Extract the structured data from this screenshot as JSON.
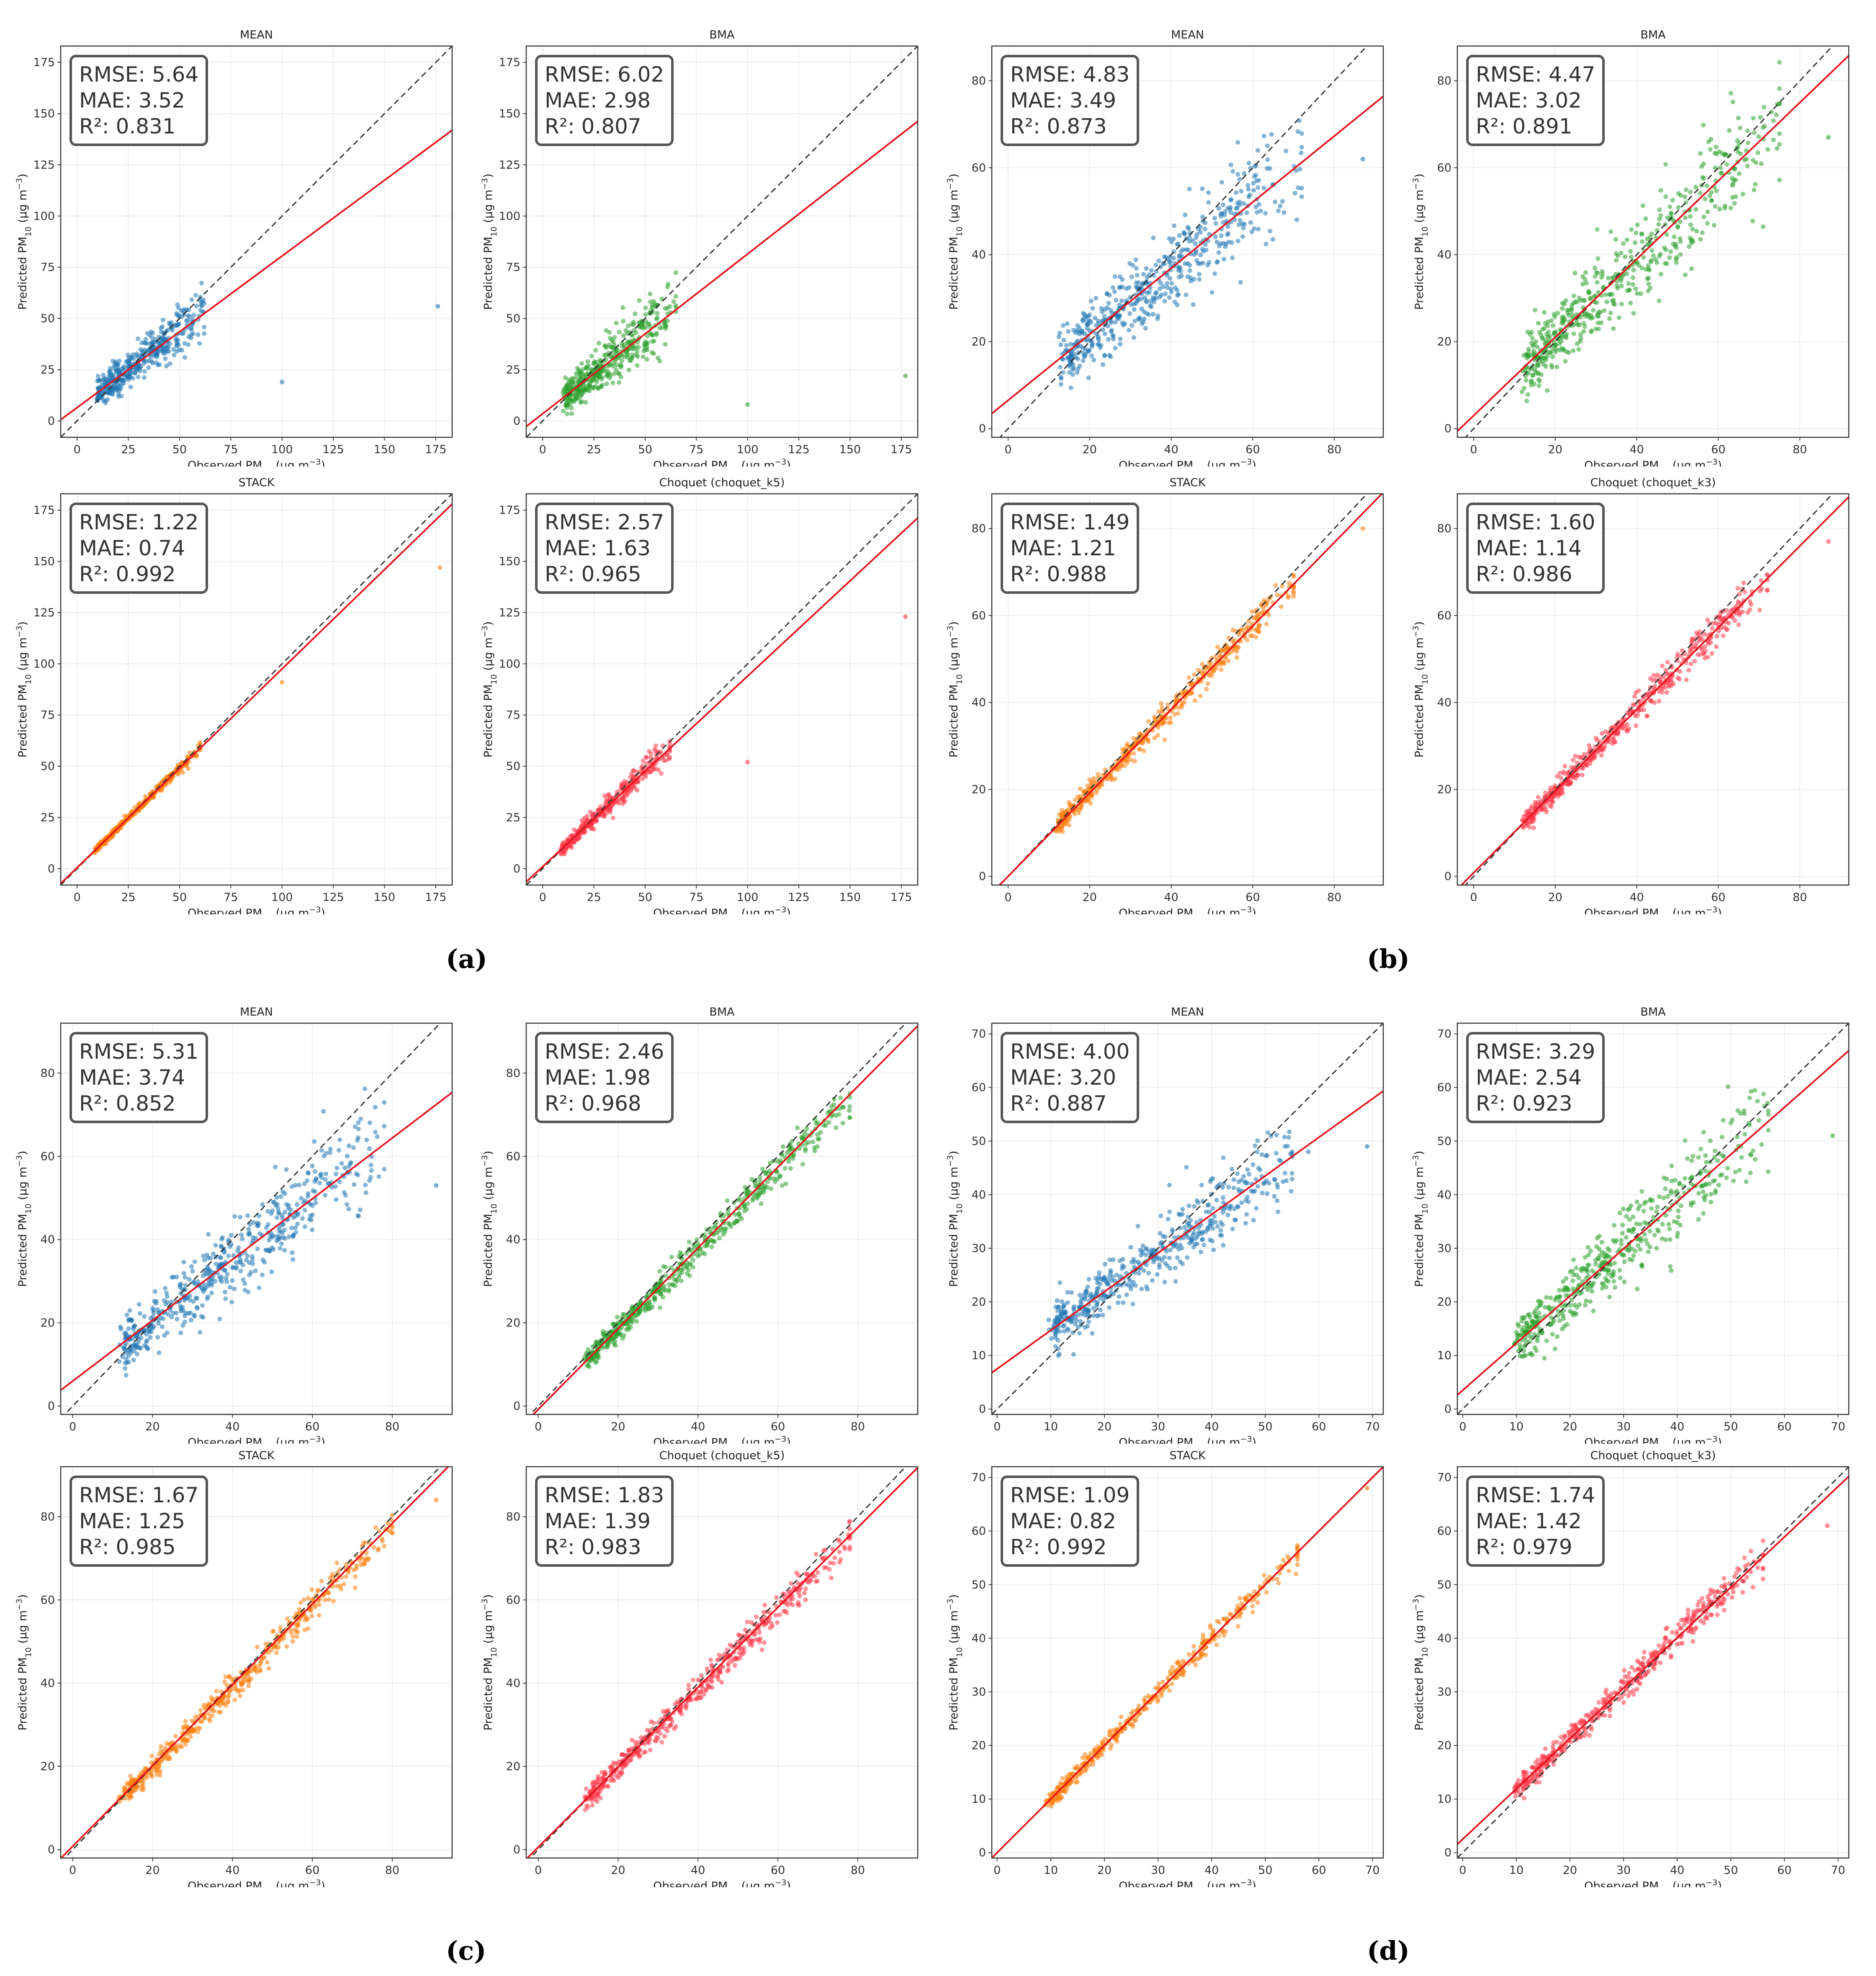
{
  "figure": {
    "panel_labels": [
      "(a)",
      "(b)",
      "(c)",
      "(d)"
    ],
    "colors": {
      "MEAN": "#1f77b4",
      "BMA": "#2ca02c",
      "STACK": "#ff7f0e",
      "Choquet": "#ff3b4a",
      "fit_line": "#e8141c",
      "identity_line": "#333333",
      "stats_box": "#555555"
    }
  },
  "chart_data": [
    {
      "type": "scatter",
      "title": "MEAN",
      "xlabel": "Observed PM₁₀ (μg m⁻³)",
      "ylabel": "Predicted PM₁₀ (μg m⁻³)",
      "xlim": [
        -8,
        183
      ],
      "ylim": [
        -8,
        183
      ],
      "xticks": [
        0,
        25,
        50,
        75,
        100,
        125,
        150,
        175
      ],
      "yticks": [
        0,
        25,
        50,
        75,
        100,
        125,
        150,
        175
      ],
      "grid": true,
      "color": "#1f77b4",
      "stats": [
        "RMSE: 5.64",
        "MAE: 3.52",
        "R²: 0.831"
      ],
      "fit": {
        "slope": 0.74,
        "intercept": 6.5
      },
      "points": {
        "n": 420,
        "xmin": 2,
        "xmax": 62,
        "shrink": 0.76,
        "shift": 5.5,
        "noise": 4.5,
        "outliers": [
          [
            100,
            19
          ],
          [
            176,
            56
          ]
        ]
      }
    },
    {
      "type": "scatter",
      "title": "BMA",
      "xlabel": "Observed PM₁₀ (μg m⁻³)",
      "ylabel": "Predicted PM₁₀ (μg m⁻³)",
      "xlim": [
        -8,
        183
      ],
      "ylim": [
        -8,
        183
      ],
      "xticks": [
        0,
        25,
        50,
        75,
        100,
        125,
        150,
        175
      ],
      "yticks": [
        0,
        25,
        50,
        75,
        100,
        125,
        150,
        175
      ],
      "grid": true,
      "color": "#2ca02c",
      "stats": [
        "RMSE: 6.02",
        "MAE: 2.98",
        "R²: 0.807"
      ],
      "fit": {
        "slope": 0.78,
        "intercept": 3.5
      },
      "points": {
        "n": 420,
        "xmin": 2,
        "xmax": 65,
        "shrink": 0.8,
        "shift": 3.5,
        "noise": 5.5,
        "outliers": [
          [
            100,
            8
          ],
          [
            177,
            22
          ]
        ]
      }
    },
    {
      "type": "scatter",
      "title": "MEAN",
      "xlabel": "Observed PM₁₀ (μg m⁻³)",
      "ylabel": "Predicted PM₁₀ (μg m⁻³)",
      "xlim": [
        -4,
        92
      ],
      "ylim": [
        -2,
        88
      ],
      "xticks": [
        0,
        20,
        40,
        60,
        80
      ],
      "yticks": [
        0,
        20,
        40,
        60,
        80
      ],
      "grid": true,
      "color": "#1f77b4",
      "stats": [
        "RMSE: 4.83",
        "MAE: 3.49",
        "R²: 0.873"
      ],
      "fit": {
        "slope": 0.76,
        "intercept": 6.5
      },
      "points": {
        "n": 520,
        "xmin": 4,
        "xmax": 72,
        "shrink": 0.78,
        "shift": 5.5,
        "noise": 4.0,
        "outliers": [
          [
            87,
            62
          ]
        ]
      }
    },
    {
      "type": "scatter",
      "title": "BMA",
      "xlabel": "Observed PM₁₀ (μg m⁻³)",
      "ylabel": "Predicted PM₁₀ (μg m⁻³)",
      "xlim": [
        -4,
        92
      ],
      "ylim": [
        -2,
        88
      ],
      "xticks": [
        0,
        20,
        40,
        60,
        80
      ],
      "yticks": [
        0,
        20,
        40,
        60,
        80
      ],
      "grid": true,
      "color": "#2ca02c",
      "stats": [
        "RMSE: 4.47",
        "MAE: 3.02",
        "R²: 0.891"
      ],
      "fit": {
        "slope": 0.9,
        "intercept": 3.0
      },
      "points": {
        "n": 520,
        "xmin": 3,
        "xmax": 75,
        "shrink": 0.9,
        "shift": 2.5,
        "noise": 4.5,
        "outliers": [
          [
            87,
            67
          ]
        ]
      }
    },
    {
      "type": "scatter",
      "title": "STACK",
      "xlabel": "Observed PM₁₀ (μg m⁻³)",
      "ylabel": "Predicted PM₁₀ (μg m⁻³)",
      "xlim": [
        -8,
        183
      ],
      "ylim": [
        -8,
        183
      ],
      "xticks": [
        0,
        25,
        50,
        75,
        100,
        125,
        150,
        175
      ],
      "yticks": [
        0,
        25,
        50,
        75,
        100,
        125,
        150,
        175
      ],
      "grid": true,
      "color": "#ff7f0e",
      "stats": [
        "RMSE: 1.22",
        "MAE: 0.74",
        "R²: 0.992"
      ],
      "fit": {
        "slope": 0.97,
        "intercept": 0.5
      },
      "points": {
        "n": 380,
        "xmin": 1,
        "xmax": 60,
        "shrink": 0.97,
        "shift": 0.5,
        "noise": 0.9,
        "outliers": [
          [
            100,
            91
          ],
          [
            177,
            147
          ]
        ]
      }
    },
    {
      "type": "scatter",
      "title": "Choquet (choquet_k5)",
      "xlabel": "Observed PM₁₀ (μg m⁻³)",
      "ylabel": "Predicted PM₁₀ (μg m⁻³)",
      "xlim": [
        -8,
        183
      ],
      "ylim": [
        -8,
        183
      ],
      "xticks": [
        0,
        25,
        50,
        75,
        100,
        125,
        150,
        175
      ],
      "yticks": [
        0,
        25,
        50,
        75,
        100,
        125,
        150,
        175
      ],
      "grid": true,
      "color": "#ff3b4a",
      "stats": [
        "RMSE: 2.57",
        "MAE: 1.63",
        "R²: 0.965"
      ],
      "fit": {
        "slope": 0.93,
        "intercept": 1.0
      },
      "points": {
        "n": 380,
        "xmin": 1,
        "xmax": 62,
        "shrink": 0.93,
        "shift": 1.0,
        "noise": 2.2,
        "outliers": [
          [
            100,
            52
          ],
          [
            177,
            123
          ]
        ]
      }
    },
    {
      "type": "scatter",
      "title": "STACK",
      "xlabel": "Observed PM₁₀ (μg m⁻³)",
      "ylabel": "Predicted PM₁₀ (μg m⁻³)",
      "xlim": [
        -4,
        92
      ],
      "ylim": [
        -2,
        88
      ],
      "xticks": [
        0,
        20,
        40,
        60,
        80
      ],
      "yticks": [
        0,
        20,
        40,
        60,
        80
      ],
      "grid": true,
      "color": "#ff7f0e",
      "stats": [
        "RMSE: 1.49",
        "MAE: 1.21",
        "R²: 0.988"
      ],
      "fit": {
        "slope": 0.96,
        "intercept": 0.0
      },
      "points": {
        "n": 500,
        "xmin": 3,
        "xmax": 70,
        "shrink": 0.96,
        "shift": 0.0,
        "noise": 1.3,
        "outliers": [
          [
            87,
            80
          ]
        ]
      }
    },
    {
      "type": "scatter",
      "title": "Choquet (choquet_k3)",
      "xlabel": "Observed PM₁₀ (μg m⁻³)",
      "ylabel": "Predicted PM₁₀ (μg m⁻³)",
      "xlim": [
        -4,
        92
      ],
      "ylim": [
        -2,
        88
      ],
      "xticks": [
        0,
        20,
        40,
        60,
        80
      ],
      "yticks": [
        0,
        20,
        40,
        60,
        80
      ],
      "grid": true,
      "color": "#ff3b4a",
      "stats": [
        "RMSE: 1.60",
        "MAE: 1.14",
        "R²: 0.986"
      ],
      "fit": {
        "slope": 0.94,
        "intercept": 0.8
      },
      "points": {
        "n": 500,
        "xmin": 3,
        "xmax": 72,
        "shrink": 0.94,
        "shift": 0.8,
        "noise": 1.4,
        "outliers": [
          [
            87,
            77
          ]
        ]
      }
    },
    {
      "type": "scatter",
      "title": "MEAN",
      "xlabel": "Observed PM₁₀ (μg m⁻³)",
      "ylabel": "Predicted PM₁₀ (μg m⁻³)",
      "xlim": [
        -3,
        95
      ],
      "ylim": [
        -2,
        92
      ],
      "xticks": [
        0,
        20,
        40,
        60,
        80
      ],
      "yticks": [
        0,
        20,
        40,
        60,
        80
      ],
      "grid": true,
      "color": "#1f77b4",
      "stats": [
        "RMSE: 5.31",
        "MAE: 3.74",
        "R²: 0.852"
      ],
      "fit": {
        "slope": 0.73,
        "intercept": 6.0
      },
      "points": {
        "n": 520,
        "xmin": 2,
        "xmax": 78,
        "shrink": 0.74,
        "shift": 5.5,
        "noise": 4.0,
        "outliers": [
          [
            91,
            53
          ]
        ]
      }
    },
    {
      "type": "scatter",
      "title": "BMA",
      "xlabel": "Observed PM₁₀ (μg m⁻³)",
      "ylabel": "Predicted PM₁₀ (μg m⁻³)",
      "xlim": [
        -3,
        95
      ],
      "ylim": [
        -2,
        92
      ],
      "xticks": [
        0,
        20,
        40,
        60,
        80
      ],
      "yticks": [
        0,
        20,
        40,
        60,
        80
      ],
      "grid": true,
      "color": "#2ca02c",
      "stats": [
        "RMSE: 2.46",
        "MAE: 1.98",
        "R²: 0.968"
      ],
      "fit": {
        "slope": 0.97,
        "intercept": -0.8
      },
      "points": {
        "n": 520,
        "xmin": 2,
        "xmax": 78,
        "shrink": 0.96,
        "shift": -0.8,
        "noise": 1.6,
        "outliers": []
      }
    },
    {
      "type": "scatter",
      "title": "MEAN",
      "xlabel": "Observed PM₁₀ (μg m⁻³)",
      "ylabel": "Predicted PM₁₀ (μg m⁻³)",
      "xlim": [
        -1,
        72
      ],
      "ylim": [
        -1,
        72
      ],
      "xticks": [
        0,
        10,
        20,
        30,
        40,
        50,
        60,
        70
      ],
      "yticks": [
        0,
        10,
        20,
        30,
        40,
        50,
        60,
        70
      ],
      "grid": true,
      "color": "#1f77b4",
      "stats": [
        "RMSE: 4.00",
        "MAE: 3.20",
        "R²: 0.887"
      ],
      "fit": {
        "slope": 0.72,
        "intercept": 7.5
      },
      "points": {
        "n": 480,
        "xmin": 3,
        "xmax": 55,
        "shrink": 0.72,
        "shift": 7.5,
        "noise": 2.6,
        "outliers": [
          [
            69,
            49
          ],
          [
            58,
            48
          ]
        ]
      }
    },
    {
      "type": "scatter",
      "title": "BMA",
      "xlabel": "Observed PM₁₀ (μg m⁻³)",
      "ylabel": "Predicted PM₁₀ (μg m⁻³)",
      "xlim": [
        -1,
        72
      ],
      "ylim": [
        -1,
        72
      ],
      "xticks": [
        0,
        10,
        20,
        30,
        40,
        50,
        60,
        70
      ],
      "yticks": [
        0,
        10,
        20,
        30,
        40,
        50,
        60,
        70
      ],
      "grid": true,
      "color": "#2ca02c",
      "stats": [
        "RMSE: 3.29",
        "MAE: 2.54",
        "R²: 0.923"
      ],
      "fit": {
        "slope": 0.88,
        "intercept": 3.5
      },
      "points": {
        "n": 480,
        "xmin": 3,
        "xmax": 57,
        "shrink": 0.88,
        "shift": 3.5,
        "noise": 3.0,
        "outliers": [
          [
            69,
            51
          ]
        ]
      }
    },
    {
      "type": "scatter",
      "title": "STACK",
      "xlabel": "Observed PM₁₀ (μg m⁻³)",
      "ylabel": "Predicted PM₁₀ (μg m⁻³)",
      "xlim": [
        -1,
        72
      ],
      "ylim": [
        -1,
        72
      ],
      "xticks": [
        0,
        10,
        20,
        30,
        40,
        50,
        60,
        70
      ],
      "yticks": [
        0,
        10,
        20,
        30,
        40,
        50,
        60,
        70
      ],
      "grid": true,
      "color": "#ff7f0e",
      "stats": [
        "RMSE: 1.09",
        "MAE: 0.82",
        "R²: 0.992"
      ],
      "fit": {
        "slope": 1.0,
        "intercept": 0.0
      },
      "points": {
        "n": 450,
        "xmin": 2,
        "xmax": 56,
        "shrink": 1.0,
        "shift": 0.0,
        "noise": 0.8,
        "outliers": [
          [
            69,
            68
          ]
        ]
      }
    },
    {
      "type": "scatter",
      "title": "Choquet (choquet_k3)",
      "xlabel": "Observed PM₁₀ (μg m⁻³)",
      "ylabel": "Predicted PM₁₀ (μg m⁻³)",
      "xlim": [
        -1,
        72
      ],
      "ylim": [
        -1,
        72
      ],
      "xticks": [
        0,
        10,
        20,
        30,
        40,
        50,
        60,
        70
      ],
      "yticks": [
        0,
        10,
        20,
        30,
        40,
        50,
        60,
        70
      ],
      "grid": true,
      "color": "#ff3b4a",
      "stats": [
        "RMSE: 1.74",
        "MAE: 1.42",
        "R²: 0.979"
      ],
      "fit": {
        "slope": 0.94,
        "intercept": 2.5
      },
      "points": {
        "n": 450,
        "xmin": 3,
        "xmax": 56,
        "shrink": 0.94,
        "shift": 2.5,
        "noise": 1.2,
        "outliers": [
          [
            68,
            61
          ]
        ]
      }
    },
    {
      "type": "scatter",
      "title": "STACK",
      "xlabel": "Observed PM₁₀ (μg m⁻³)",
      "ylabel": "Predicted PM₁₀ (μg m⁻³)",
      "xlim": [
        -3,
        95
      ],
      "ylim": [
        -2,
        92
      ],
      "xticks": [
        0,
        20,
        40,
        60,
        80
      ],
      "yticks": [
        0,
        20,
        40,
        60,
        80
      ],
      "grid": true,
      "color": "#ff7f0e",
      "stats": [
        "RMSE: 1.67",
        "MAE: 1.25",
        "R²: 0.985"
      ],
      "fit": {
        "slope": 0.97,
        "intercept": 0.8
      },
      "points": {
        "n": 500,
        "xmin": 2,
        "xmax": 80,
        "shrink": 0.96,
        "shift": 0.6,
        "noise": 1.5,
        "outliers": [
          [
            91,
            84
          ]
        ]
      }
    },
    {
      "type": "scatter",
      "title": "Choquet (choquet_k5)",
      "xlabel": "Observed PM₁₀ (μg m⁻³)",
      "ylabel": "Predicted PM₁₀ (μg m⁻³)",
      "xlim": [
        -3,
        95
      ],
      "ylim": [
        -2,
        92
      ],
      "xticks": [
        0,
        20,
        40,
        60,
        80
      ],
      "yticks": [
        0,
        20,
        40,
        60,
        80
      ],
      "grid": true,
      "color": "#ff3b4a",
      "stats": [
        "RMSE: 1.83",
        "MAE: 1.39",
        "R²: 0.983"
      ],
      "fit": {
        "slope": 0.96,
        "intercept": 0.6
      },
      "points": {
        "n": 500,
        "xmin": 2,
        "xmax": 78,
        "shrink": 0.95,
        "shift": 0.6,
        "noise": 1.6,
        "outliers": []
      }
    }
  ]
}
